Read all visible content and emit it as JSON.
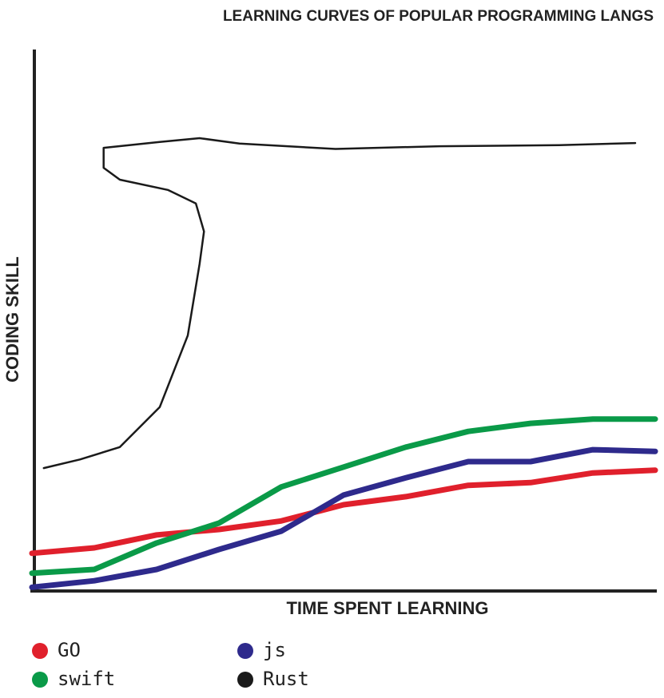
{
  "chart_data": {
    "type": "line",
    "title": "LEARNING CURVES OF POPULAR PROGRAMMING LANGS",
    "x_label": "TIME SPENT LEARNING",
    "y_label": "CODING SKILL",
    "xlim": [
      0,
      100
    ],
    "ylim": [
      0,
      100
    ],
    "series": [
      {
        "name": "GO",
        "color": "#e0202c",
        "x": [
          0,
          10,
          20,
          30,
          40,
          50,
          60,
          70,
          80,
          90,
          100
        ],
        "values": [
          7.0,
          8.0,
          10.4,
          11.4,
          13.0,
          16.0,
          17.5,
          19.6,
          20.1,
          21.9,
          22.4
        ]
      },
      {
        "name": "js",
        "color": "#2e2a8c",
        "x": [
          0,
          10,
          20,
          30,
          40,
          50,
          60,
          70,
          80,
          90,
          100
        ],
        "values": [
          0.7,
          1.9,
          4.0,
          7.7,
          11.1,
          17.8,
          21.0,
          24.0,
          24.0,
          26.2,
          25.9
        ]
      },
      {
        "name": "swift",
        "color": "#0a9a48",
        "x": [
          0,
          10,
          20,
          30,
          40,
          50,
          60,
          70,
          80,
          90,
          100
        ],
        "values": [
          3.3,
          4.0,
          8.9,
          12.6,
          19.3,
          23.0,
          26.7,
          29.6,
          31.1,
          31.9,
          31.9
        ]
      },
      {
        "name": "Rust",
        "color": "#1a1a1a",
        "x": [
          1.9,
          7.7,
          14.1,
          20.5,
          25.0,
          26.9,
          27.6,
          26.3,
          21.8,
          14.1,
          11.5,
          11.5,
          20.5,
          26.9,
          33.3,
          48.7,
          65.4,
          84.6,
          96.8
        ],
        "values": [
          22.8,
          24.4,
          26.7,
          34.1,
          47.4,
          60.7,
          66.7,
          71.9,
          74.4,
          76.3,
          78.5,
          82.2,
          83.3,
          84.0,
          83.0,
          82.0,
          82.5,
          82.7,
          83.1
        ]
      }
    ]
  }
}
